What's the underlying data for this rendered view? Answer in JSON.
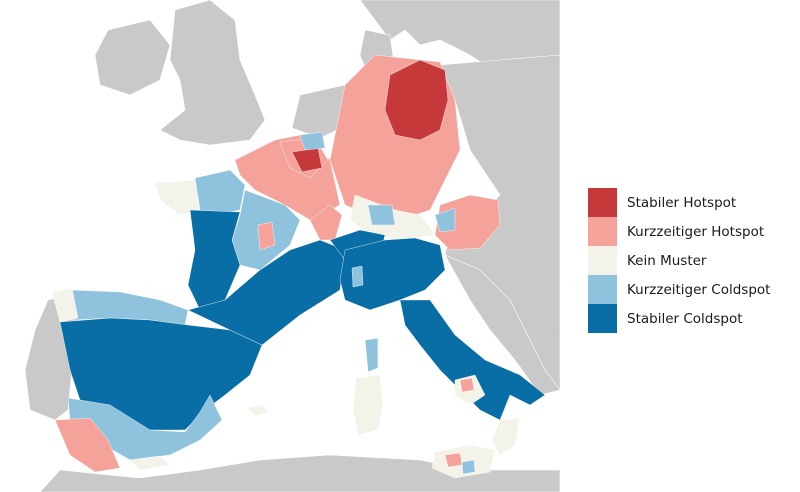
{
  "legend": {
    "items": [
      {
        "label": "Stabiler Hotspot",
        "color": "#c6393a"
      },
      {
        "label": "Kurzzeitiger Hotspot",
        "color": "#f4a29a"
      },
      {
        "label": "Kein Muster",
        "color": "#f3f3ea"
      },
      {
        "label": "Kurzzeitiger Coldspot",
        "color": "#8fc3dd"
      },
      {
        "label": "Stabiler Coldspot",
        "color": "#086ea5"
      }
    ]
  },
  "colors": {
    "sea": "#ffffff",
    "land_outside": "#c9c9c9",
    "border": "#ffffff"
  }
}
